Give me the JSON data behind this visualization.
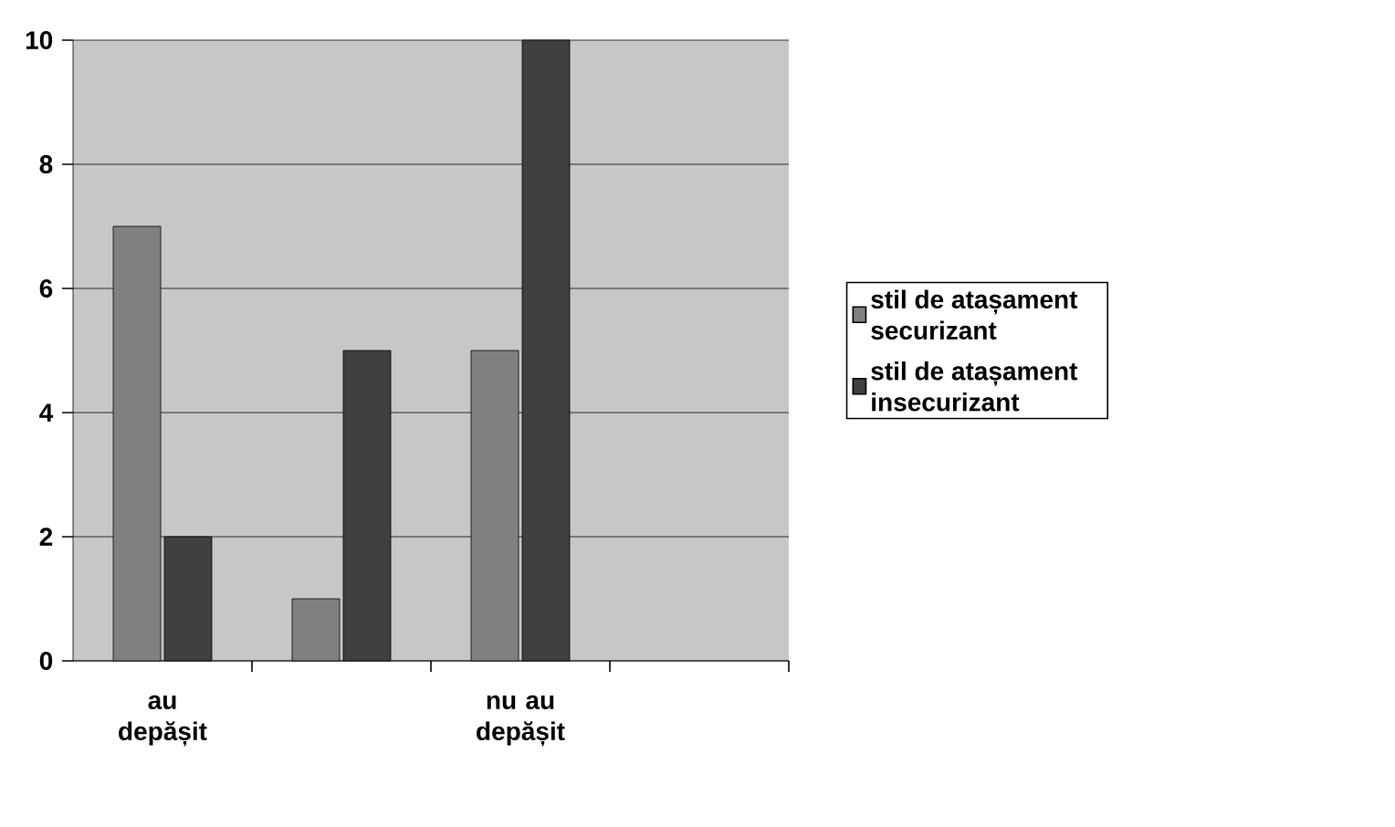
{
  "chart_data": {
    "type": "bar",
    "categories": [
      "au depășit",
      null,
      "nu au depășit",
      null
    ],
    "series": [
      {
        "name": "stil de atașament securizant",
        "color": "#808080",
        "values": [
          7,
          1,
          5,
          null
        ]
      },
      {
        "name": "stil de atașament insecurizant",
        "color": "#404040",
        "values": [
          2,
          5,
          10,
          null
        ]
      }
    ],
    "ylim": [
      0,
      10
    ],
    "yticks": [
      0,
      2,
      4,
      6,
      8,
      10
    ],
    "grid": "y",
    "legend": "right"
  }
}
